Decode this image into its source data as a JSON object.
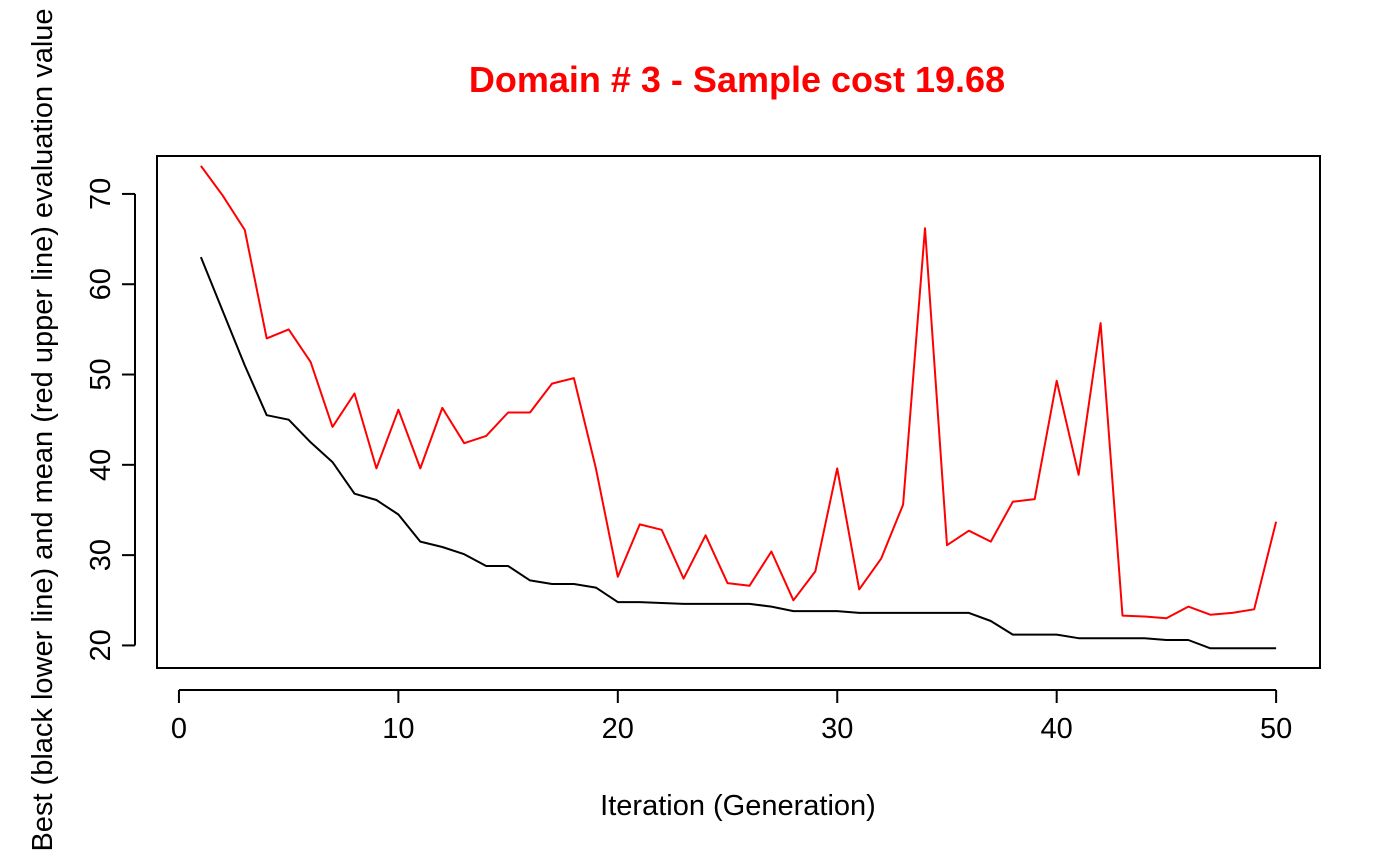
{
  "chart_data": {
    "type": "line",
    "title": "Domain # 3  - Sample cost 19.68",
    "title_color": "#ff0000",
    "xlabel": "Iteration (Generation)",
    "ylabel": "Best (black lower line) and mean (red upper line) evaluation value",
    "xlim": [
      -1,
      52
    ],
    "ylim": [
      17.5,
      74.2
    ],
    "x_ticks": [
      0,
      10,
      20,
      30,
      40,
      50
    ],
    "y_ticks": [
      20,
      30,
      40,
      50,
      60,
      70
    ],
    "grid": false,
    "legend": "none",
    "x": [
      1,
      2,
      3,
      4,
      5,
      6,
      7,
      8,
      9,
      10,
      11,
      12,
      13,
      14,
      15,
      16,
      17,
      18,
      19,
      20,
      21,
      22,
      23,
      24,
      25,
      26,
      27,
      28,
      29,
      30,
      31,
      32,
      33,
      34,
      35,
      36,
      37,
      38,
      39,
      40,
      41,
      42,
      43,
      44,
      45,
      46,
      47,
      48,
      49,
      50
    ],
    "series": [
      {
        "color": "#ff0000",
        "values": [
          73.1,
          69.8,
          66.0,
          54.0,
          55.0,
          51.4,
          44.2,
          47.9,
          39.6,
          46.1,
          39.6,
          46.3,
          42.4,
          43.2,
          45.8,
          45.8,
          49.0,
          49.6,
          39.6,
          27.6,
          33.4,
          32.8,
          27.4,
          32.2,
          26.9,
          26.6,
          30.4,
          25.0,
          28.2,
          39.6,
          26.2,
          29.6,
          35.6,
          66.2,
          31.1,
          32.7,
          31.5,
          35.9,
          36.2,
          49.3,
          38.9,
          55.7,
          23.3,
          23.2,
          23.0,
          24.3,
          23.4,
          23.6,
          24.0,
          33.7
        ]
      },
      {
        "color": "#000000",
        "values": [
          63.0,
          57.0,
          51.0,
          45.5,
          45.0,
          42.5,
          40.3,
          36.8,
          36.1,
          34.5,
          31.5,
          30.9,
          30.1,
          28.8,
          28.8,
          27.2,
          26.8,
          26.8,
          26.4,
          24.8,
          24.8,
          24.7,
          24.6,
          24.6,
          24.6,
          24.6,
          24.3,
          23.8,
          23.8,
          23.8,
          23.6,
          23.6,
          23.6,
          23.6,
          23.6,
          23.6,
          22.7,
          21.2,
          21.2,
          21.2,
          20.8,
          20.8,
          20.8,
          20.8,
          20.6,
          20.6,
          19.68,
          19.68,
          19.68,
          19.68
        ]
      }
    ]
  }
}
